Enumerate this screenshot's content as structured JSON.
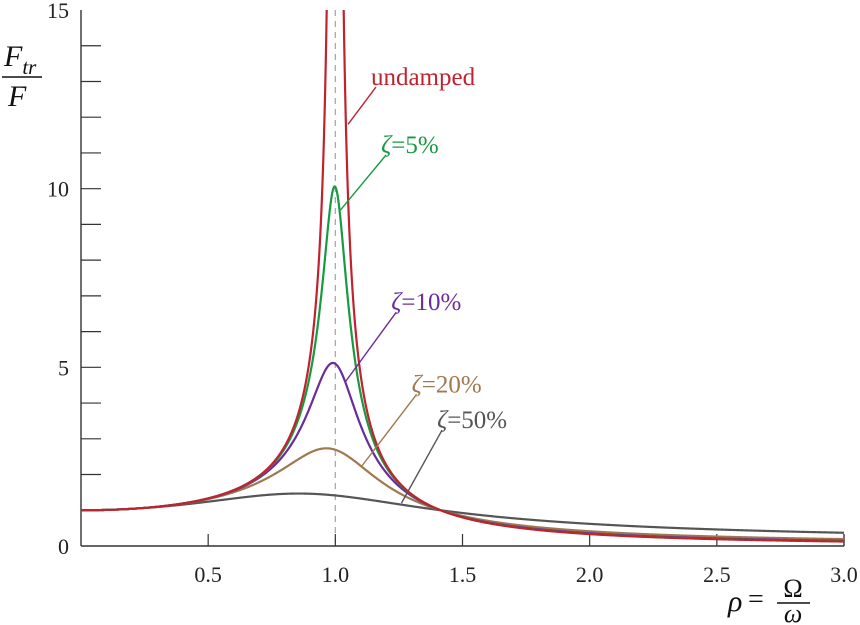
{
  "chart_data": {
    "type": "line",
    "title": "",
    "ylabel": {
      "numerator": "F",
      "numerator_sub": "tr",
      "denominator": "F"
    },
    "xlabel": {
      "symbol": "ρ",
      "equals": "=",
      "numerator": "Ω",
      "denominator": "ω"
    },
    "xlim": [
      0,
      3.0
    ],
    "ylim": [
      0,
      15
    ],
    "grid": false,
    "x_ticks": [
      {
        "value": 0.5,
        "label": "0.5"
      },
      {
        "value": 1.0,
        "label": "1.0"
      },
      {
        "value": 1.5,
        "label": "1.5"
      },
      {
        "value": 2.0,
        "label": "2.0"
      },
      {
        "value": 2.5,
        "label": "2.5"
      },
      {
        "value": 3.0,
        "label": "3.0"
      }
    ],
    "y_ticks": [
      {
        "value": 0,
        "label": "0"
      },
      {
        "value": 5,
        "label": "5"
      },
      {
        "value": 10,
        "label": "10"
      },
      {
        "value": 15,
        "label": "15"
      }
    ],
    "y_minor_step": 1,
    "reference_line_x": 1.0,
    "series": [
      {
        "name": "ζ=50%",
        "label_greek": "ζ",
        "label_rest": "=50%",
        "zeta": 0.5,
        "color": "#555555",
        "label_pos": [
          1.4,
          3.3
        ],
        "leader_from": [
          1.26,
          1.2
        ],
        "x": [
          0,
          0.5,
          0.8,
          0.86,
          1.0,
          1.2,
          1.5,
          2.0,
          2.5,
          3.0
        ],
        "y": [
          1.0,
          1.27,
          1.45,
          1.46,
          1.41,
          1.23,
          0.97,
          0.69,
          0.53,
          0.43
        ]
      },
      {
        "name": "ζ=20%",
        "label_greek": "ζ",
        "label_rest": "=20%",
        "zeta": 0.2,
        "color": "#a07850",
        "label_pos": [
          1.3,
          4.3
        ],
        "leader_from": [
          1.1,
          2.2
        ],
        "x": [
          0,
          0.5,
          0.8,
          0.96,
          1.0,
          1.2,
          1.5,
          2.0,
          2.5,
          3.0
        ],
        "y": [
          1.0,
          1.32,
          2.2,
          2.7,
          2.69,
          1.9,
          0.97,
          0.44,
          0.28,
          0.21
        ]
      },
      {
        "name": "ζ=10%",
        "label_greek": "ζ",
        "label_rest": "=10%",
        "zeta": 0.1,
        "color": "#6a2c9a",
        "label_pos": [
          1.22,
          6.6
        ],
        "leader_from": [
          1.04,
          4.6
        ],
        "x": [
          0,
          0.5,
          0.8,
          0.99,
          1.0,
          1.2,
          1.5,
          2.0,
          2.5,
          3.0
        ],
        "y": [
          1.0,
          1.33,
          2.7,
          5.12,
          5.1,
          2.2,
          0.89,
          0.37,
          0.21,
          0.15
        ]
      },
      {
        "name": "ζ=5%",
        "label_greek": "ζ",
        "label_rest": "=5%",
        "zeta": 0.05,
        "color": "#179a42",
        "label_pos": [
          1.18,
          11.0
        ],
        "leader_from": [
          1.02,
          9.4
        ],
        "x": [
          0,
          0.5,
          0.8,
          1.0,
          1.2,
          1.5,
          2.0,
          2.5,
          3.0
        ],
        "y": [
          1.0,
          1.33,
          2.75,
          10.05,
          2.27,
          0.82,
          0.34,
          0.19,
          0.13
        ]
      },
      {
        "name": "undamped",
        "label_greek": "",
        "label_rest": "undamped",
        "zeta": 0.0,
        "color": "#c0232e",
        "label_pos": [
          1.14,
          12.9
        ],
        "leader_from": [
          1.05,
          11.8
        ],
        "x": [
          0,
          0.5,
          0.8,
          0.96,
          1.04,
          1.2,
          1.5,
          2.0,
          2.5,
          3.0
        ],
        "y": [
          1.0,
          1.33,
          2.78,
          12.8,
          12.8,
          2.27,
          0.8,
          0.33,
          0.19,
          0.125
        ]
      }
    ]
  }
}
